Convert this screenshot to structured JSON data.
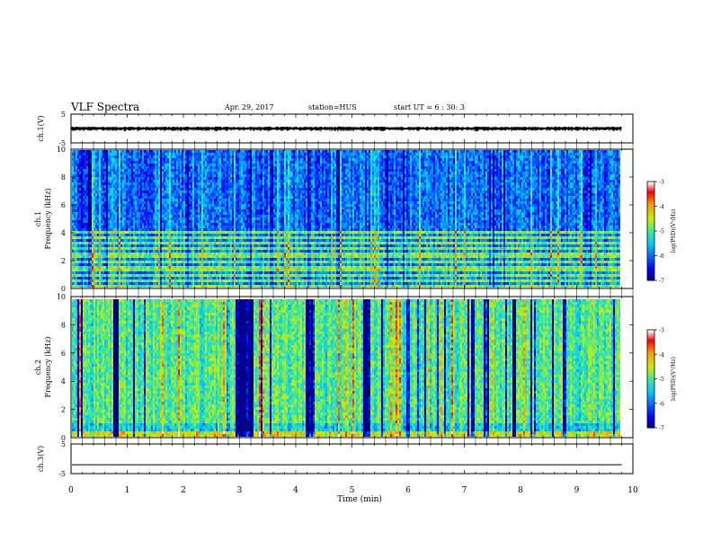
{
  "header": {
    "title": "VLF Spectra",
    "date": "Apr. 29, 2017",
    "station": "station=HUS",
    "start_ut": "start  UT =  6 : 30: 3"
  },
  "chart_data": [
    {
      "type": "line",
      "panel": "ch1-waveform",
      "ylabel": "ch.1(V)",
      "ylim": [
        -5,
        5
      ],
      "yticks": [
        "5",
        "-5"
      ],
      "x_range_min": [
        0,
        10
      ],
      "description_values": {
        "baseline_v": 0.0,
        "noise_amplitude_v": 0.5
      }
    },
    {
      "type": "heatmap",
      "panel": "ch1-spectrogram",
      "ylabel": "ch.1\nFrequency (kHz)",
      "ylim": [
        0,
        10
      ],
      "yticks": [
        "0",
        "2",
        "4",
        "6",
        "8",
        "10"
      ],
      "colorbar": {
        "label": "log(PSD)(V²/Hz)",
        "range": [
          -7,
          -3
        ],
        "ticks": [
          "-3",
          "-4",
          "-5",
          "-6",
          "-7"
        ]
      },
      "dominant_level": -6.0,
      "banded_frequencies_khz": [
        0.3,
        0.6,
        1.0,
        1.5,
        2.0,
        2.5,
        3.0,
        3.3,
        3.7,
        4.1
      ]
    },
    {
      "type": "heatmap",
      "panel": "ch2-spectrogram",
      "ylabel": "ch.2\nFrequency (kHz)",
      "ylim": [
        0,
        10
      ],
      "yticks": [
        "0",
        "2",
        "4",
        "6",
        "8",
        "10"
      ],
      "colorbar": {
        "label": "log(PSD)(V²/Hz)",
        "range": [
          -7,
          -3
        ],
        "ticks": [
          "-3",
          "-4",
          "-5",
          "-6",
          "-7"
        ]
      },
      "dominant_level": -5.0,
      "dark_intervals_min": [
        [
          0.72,
          0.8
        ],
        [
          2.9,
          3.2
        ],
        [
          4.15,
          4.3
        ],
        [
          5.18,
          5.28
        ],
        [
          7.3,
          7.42
        ],
        [
          7.82,
          7.9
        ]
      ]
    },
    {
      "type": "line",
      "panel": "ch3-waveform",
      "ylabel": "ch.3(V)",
      "ylim": [
        -5,
        5
      ],
      "yticks": [
        "5",
        "-5"
      ],
      "description_values": {
        "baseline_v": -2.0
      }
    }
  ],
  "xaxis": {
    "label": "Time  (min)",
    "range": [
      0,
      10
    ],
    "ticks": [
      "0",
      "1",
      "2",
      "3",
      "4",
      "5",
      "6",
      "7",
      "8",
      "9",
      "10"
    ],
    "data_end_min": 9.8
  }
}
